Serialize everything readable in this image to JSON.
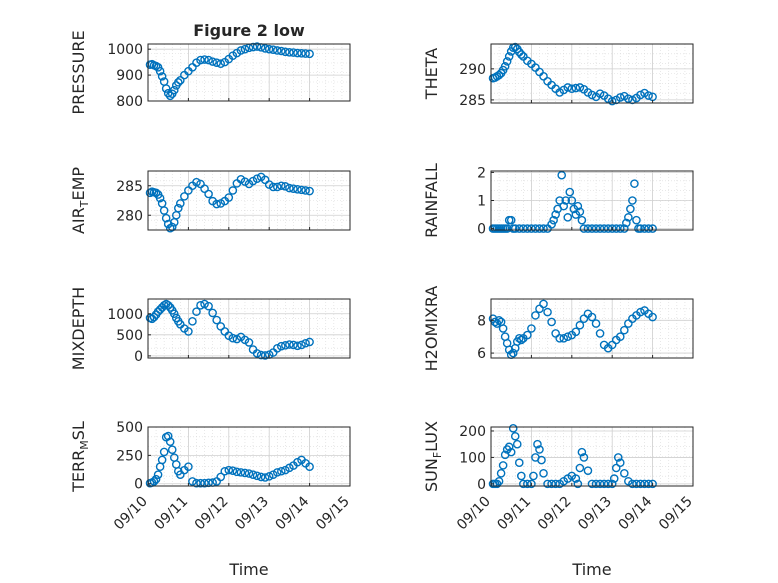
{
  "figure": {
    "title": "Figure 2 low"
  },
  "colors": {
    "marker": "#0072bd",
    "axes": "#262626",
    "grid": "#d9d9d9",
    "background": "#ffffff"
  },
  "chart_data": [
    {
      "id": "pressure",
      "type": "scatter",
      "ylabel": "PRESSURE",
      "ylabel_sub": "",
      "title": "Figure 2 low",
      "xlabel": "",
      "ylim": [
        800,
        1020
      ],
      "yticks": [
        800,
        900,
        1000
      ],
      "x": [
        0.05,
        0.1,
        0.15,
        0.2,
        0.25,
        0.3,
        0.35,
        0.4,
        0.45,
        0.5,
        0.55,
        0.6,
        0.65,
        0.7,
        0.75,
        0.8,
        0.9,
        1.0,
        1.1,
        1.2,
        1.3,
        1.4,
        1.5,
        1.6,
        1.7,
        1.8,
        1.9,
        2.0,
        2.1,
        2.2,
        2.3,
        2.4,
        2.5,
        2.6,
        2.7,
        2.8,
        2.9,
        3.0,
        3.1,
        3.2,
        3.3,
        3.4,
        3.5,
        3.6,
        3.7,
        3.8,
        3.9,
        4.0
      ],
      "y": [
        940,
        942,
        938,
        935,
        930,
        915,
        895,
        875,
        848,
        830,
        820,
        828,
        842,
        860,
        872,
        880,
        900,
        915,
        930,
        948,
        958,
        960,
        958,
        952,
        948,
        944,
        950,
        962,
        975,
        985,
        995,
        1000,
        1005,
        1008,
        1010,
        1007,
        1003,
        1000,
        998,
        995,
        993,
        990,
        988,
        987,
        985,
        984,
        983,
        982
      ]
    },
    {
      "id": "theta",
      "type": "scatter",
      "ylabel": "THETA",
      "ylabel_sub": "",
      "title": "",
      "xlabel": "",
      "ylim": [
        284.5,
        294
      ],
      "yticks": [
        285,
        290
      ],
      "x": [
        0.05,
        0.1,
        0.15,
        0.2,
        0.25,
        0.3,
        0.35,
        0.4,
        0.45,
        0.5,
        0.55,
        0.6,
        0.65,
        0.7,
        0.75,
        0.8,
        0.9,
        1.0,
        1.1,
        1.2,
        1.3,
        1.4,
        1.5,
        1.6,
        1.7,
        1.8,
        1.9,
        2.0,
        2.1,
        2.2,
        2.3,
        2.4,
        2.5,
        2.6,
        2.7,
        2.8,
        2.9,
        3.0,
        3.1,
        3.2,
        3.3,
        3.4,
        3.5,
        3.6,
        3.7,
        3.8,
        3.9,
        4.0
      ],
      "y": [
        288.5,
        288.6,
        288.8,
        289,
        289.3,
        289.8,
        290.4,
        291.2,
        292,
        292.8,
        293.4,
        293.5,
        293.2,
        292.7,
        292.3,
        292,
        291.3,
        290.8,
        290.2,
        289.5,
        288.8,
        288,
        287.4,
        286.8,
        286.2,
        286.6,
        287,
        286.8,
        286.9,
        287,
        286.7,
        286.2,
        285.8,
        285.5,
        286,
        285.7,
        285.2,
        284.8,
        285,
        285.4,
        285.6,
        285.2,
        285,
        285.3,
        285.8,
        286.1,
        285.7,
        285.5
      ]
    },
    {
      "id": "air_temp",
      "type": "scatter",
      "ylabel": "AIR",
      "ylabel_sub": "T",
      "ylabel_suffix": "EMP",
      "title": "",
      "xlabel": "",
      "ylim": [
        277.5,
        287.5
      ],
      "yticks": [
        280,
        285
      ],
      "x": [
        0.05,
        0.1,
        0.15,
        0.2,
        0.25,
        0.3,
        0.35,
        0.4,
        0.45,
        0.5,
        0.55,
        0.6,
        0.65,
        0.7,
        0.75,
        0.8,
        0.9,
        1.0,
        1.1,
        1.2,
        1.3,
        1.4,
        1.5,
        1.6,
        1.7,
        1.8,
        1.9,
        2.0,
        2.1,
        2.2,
        2.3,
        2.4,
        2.5,
        2.6,
        2.7,
        2.8,
        2.9,
        3.0,
        3.1,
        3.2,
        3.3,
        3.4,
        3.5,
        3.6,
        3.7,
        3.8,
        3.9,
        4.0
      ],
      "y": [
        283.8,
        284,
        283.9,
        283.8,
        283.5,
        282.9,
        282,
        280.8,
        279.5,
        278.5,
        277.8,
        278,
        278.8,
        280,
        281.2,
        282,
        283.2,
        284.2,
        285,
        285.6,
        285.3,
        284.5,
        283.6,
        282.4,
        281.9,
        282,
        282.4,
        283,
        284.2,
        285.4,
        286.1,
        285.7,
        285.3,
        285.8,
        286.2,
        286.5,
        286,
        285.2,
        284.8,
        284.8,
        285,
        284.9,
        284.6,
        284.5,
        284.4,
        284.3,
        284.2,
        284.1
      ]
    },
    {
      "id": "rainfall",
      "type": "scatter",
      "ylabel": "RAINFALL",
      "ylabel_sub": "",
      "title": "",
      "xlabel": "",
      "ylim": [
        -0.05,
        2.05
      ],
      "yticks": [
        0,
        1,
        2
      ],
      "x": [
        0.05,
        0.1,
        0.15,
        0.2,
        0.25,
        0.3,
        0.35,
        0.4,
        0.45,
        0.5,
        0.55,
        0.6,
        0.7,
        0.8,
        0.9,
        1.0,
        1.1,
        1.2,
        1.3,
        1.4,
        1.5,
        1.55,
        1.6,
        1.65,
        1.7,
        1.75,
        1.8,
        1.85,
        1.9,
        1.95,
        2.0,
        2.05,
        2.1,
        2.15,
        2.2,
        2.25,
        2.3,
        2.4,
        2.5,
        2.6,
        2.7,
        2.8,
        2.9,
        3.0,
        3.1,
        3.2,
        3.3,
        3.35,
        3.4,
        3.45,
        3.5,
        3.55,
        3.6,
        3.65,
        3.7,
        3.8,
        3.9,
        4.0
      ],
      "y": [
        0,
        0,
        0,
        0,
        0,
        0,
        0,
        0,
        0.3,
        0.3,
        0,
        0,
        0,
        0,
        0,
        0,
        0,
        0,
        0,
        0,
        0.15,
        0.3,
        0.5,
        0.7,
        1.0,
        1.9,
        0.8,
        1.0,
        0.4,
        1.3,
        1.0,
        0.7,
        0.5,
        0.8,
        0.6,
        0.3,
        0,
        0,
        0,
        0,
        0,
        0,
        0,
        0,
        0,
        0,
        0,
        0.2,
        0.4,
        0.7,
        1.0,
        1.6,
        0.3,
        0,
        0,
        0,
        0,
        0
      ]
    },
    {
      "id": "mixdepth",
      "type": "scatter",
      "ylabel": "MIXDEPTH",
      "ylabel_sub": "",
      "title": "",
      "xlabel": "",
      "ylim": [
        -50,
        1350
      ],
      "yticks": [
        0,
        500,
        1000
      ],
      "x": [
        0.05,
        0.1,
        0.15,
        0.2,
        0.25,
        0.3,
        0.35,
        0.4,
        0.45,
        0.5,
        0.55,
        0.6,
        0.65,
        0.7,
        0.75,
        0.8,
        0.9,
        1.0,
        1.1,
        1.2,
        1.3,
        1.4,
        1.5,
        1.6,
        1.7,
        1.8,
        1.9,
        2.0,
        2.1,
        2.2,
        2.3,
        2.4,
        2.5,
        2.6,
        2.7,
        2.8,
        2.9,
        3.0,
        3.1,
        3.2,
        3.3,
        3.4,
        3.5,
        3.6,
        3.7,
        3.8,
        3.9,
        4.0
      ],
      "y": [
        900,
        880,
        920,
        980,
        1050,
        1100,
        1150,
        1200,
        1230,
        1200,
        1150,
        1080,
        1000,
        900,
        820,
        750,
        650,
        580,
        820,
        1050,
        1200,
        1230,
        1180,
        1020,
        850,
        700,
        580,
        480,
        420,
        400,
        450,
        380,
        320,
        150,
        60,
        20,
        10,
        30,
        80,
        180,
        230,
        250,
        270,
        260,
        240,
        260,
        300,
        330
      ]
    },
    {
      "id": "h2omixra",
      "type": "scatter",
      "ylabel": "H2OMIXRA",
      "ylabel_sub": "",
      "title": "",
      "xlabel": "",
      "ylim": [
        5.7,
        9.3
      ],
      "yticks": [
        6,
        8
      ],
      "x": [
        0.05,
        0.1,
        0.15,
        0.2,
        0.25,
        0.3,
        0.35,
        0.4,
        0.45,
        0.5,
        0.55,
        0.6,
        0.65,
        0.7,
        0.75,
        0.8,
        0.9,
        1.0,
        1.1,
        1.2,
        1.3,
        1.4,
        1.5,
        1.6,
        1.7,
        1.8,
        1.9,
        2.0,
        2.1,
        2.2,
        2.3,
        2.4,
        2.5,
        2.6,
        2.7,
        2.8,
        2.9,
        3.0,
        3.1,
        3.2,
        3.3,
        3.4,
        3.5,
        3.6,
        3.7,
        3.8,
        3.9,
        4.0
      ],
      "y": [
        8.1,
        7.9,
        7.8,
        8.0,
        7.9,
        7.5,
        7.0,
        6.6,
        6.2,
        5.9,
        6.0,
        6.3,
        6.7,
        6.9,
        6.8,
        6.9,
        7.1,
        7.5,
        8.3,
        8.7,
        9.0,
        8.5,
        7.9,
        7.2,
        6.9,
        6.9,
        7.0,
        7.1,
        7.3,
        7.7,
        8.1,
        8.4,
        8.2,
        7.8,
        7.2,
        6.5,
        6.3,
        6.5,
        6.8,
        7.0,
        7.4,
        7.8,
        8.1,
        8.3,
        8.5,
        8.6,
        8.4,
        8.2
      ]
    },
    {
      "id": "terr_msl",
      "type": "scatter",
      "ylabel": "TERR",
      "ylabel_sub": "M",
      "ylabel_suffix": "SL",
      "title": "",
      "xlabel": "Time",
      "ylim": [
        -20,
        500
      ],
      "yticks": [
        0,
        250,
        500
      ],
      "x": [
        0.05,
        0.1,
        0.15,
        0.2,
        0.25,
        0.3,
        0.35,
        0.4,
        0.45,
        0.5,
        0.55,
        0.6,
        0.65,
        0.7,
        0.75,
        0.8,
        0.9,
        1.0,
        1.1,
        1.2,
        1.3,
        1.4,
        1.5,
        1.6,
        1.7,
        1.8,
        1.9,
        2.0,
        2.1,
        2.2,
        2.3,
        2.4,
        2.5,
        2.6,
        2.7,
        2.8,
        2.9,
        3.0,
        3.1,
        3.2,
        3.3,
        3.4,
        3.5,
        3.6,
        3.7,
        3.8,
        3.9,
        4.0
      ],
      "y": [
        5,
        10,
        20,
        40,
        80,
        150,
        210,
        280,
        410,
        420,
        370,
        300,
        230,
        170,
        110,
        80,
        120,
        150,
        20,
        5,
        5,
        5,
        8,
        10,
        20,
        60,
        110,
        120,
        115,
        105,
        100,
        95,
        90,
        80,
        70,
        60,
        55,
        65,
        80,
        100,
        110,
        120,
        140,
        160,
        190,
        210,
        180,
        150
      ]
    },
    {
      "id": "sun_flux",
      "type": "scatter",
      "ylabel": "SUN",
      "ylabel_sub": "F",
      "ylabel_suffix": "LUX",
      "title": "",
      "xlabel": "Time",
      "ylim": [
        -8,
        215
      ],
      "yticks": [
        0,
        100,
        200
      ],
      "x": [
        0.05,
        0.1,
        0.15,
        0.2,
        0.25,
        0.3,
        0.35,
        0.4,
        0.45,
        0.5,
        0.55,
        0.6,
        0.65,
        0.7,
        0.75,
        0.8,
        0.9,
        1.0,
        1.05,
        1.1,
        1.15,
        1.2,
        1.25,
        1.3,
        1.4,
        1.5,
        1.6,
        1.7,
        1.8,
        1.9,
        2.0,
        2.1,
        2.15,
        2.2,
        2.25,
        2.3,
        2.4,
        2.5,
        2.6,
        2.7,
        2.8,
        2.9,
        3.0,
        3.05,
        3.1,
        3.15,
        3.2,
        3.3,
        3.4,
        3.5,
        3.6,
        3.7,
        3.8,
        3.9,
        4.0
      ],
      "y": [
        0,
        0,
        0,
        10,
        40,
        70,
        110,
        130,
        140,
        120,
        210,
        180,
        150,
        80,
        30,
        0,
        0,
        0,
        30,
        100,
        150,
        130,
        90,
        40,
        0,
        0,
        0,
        0,
        10,
        20,
        30,
        20,
        0,
        60,
        120,
        100,
        50,
        0,
        0,
        0,
        0,
        0,
        0,
        20,
        60,
        100,
        80,
        40,
        10,
        0,
        0,
        0,
        0,
        0,
        0
      ]
    }
  ],
  "x_axis": {
    "xlim": [
      0,
      5
    ],
    "ticks": [
      0,
      1,
      2,
      3,
      4,
      5
    ],
    "tick_labels": [
      "09/10",
      "09/11",
      "09/12",
      "09/13",
      "09/14",
      "09/15"
    ]
  }
}
